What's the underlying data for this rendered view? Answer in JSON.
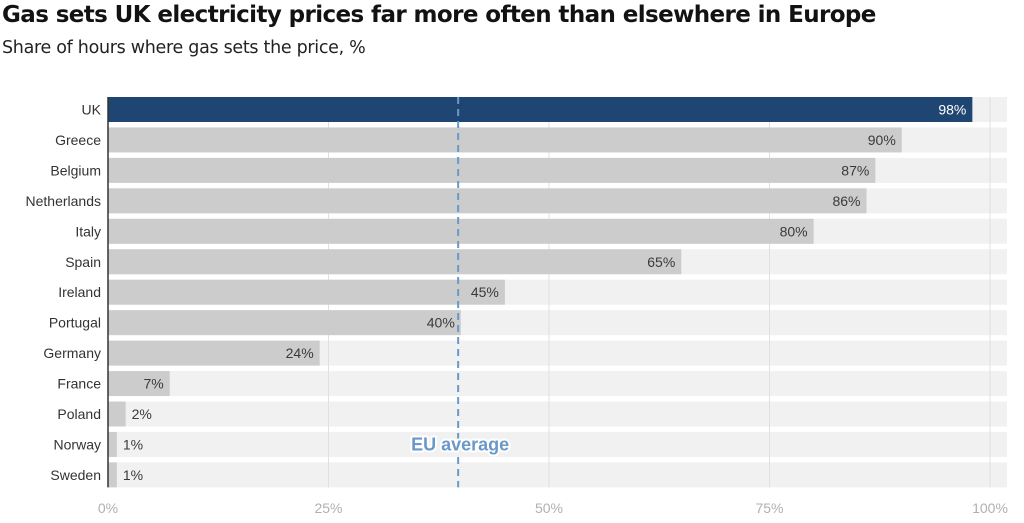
{
  "chart_data": {
    "type": "bar",
    "orientation": "horizontal",
    "title": "Gas sets UK electricity prices far more often than elsewhere in Europe",
    "subtitle": "Share of hours where gas sets the price, %",
    "xlabel": "",
    "ylabel": "",
    "xlim": [
      0,
      100
    ],
    "grid": true,
    "x_ticks": [
      0,
      25,
      50,
      75,
      100
    ],
    "x_tick_labels": [
      "0%",
      "25%",
      "50%",
      "75%",
      "100%"
    ],
    "categories": [
      "UK",
      "Greece",
      "Belgium",
      "Netherlands",
      "Italy",
      "Spain",
      "Ireland",
      "Portugal",
      "Germany",
      "France",
      "Poland",
      "Norway",
      "Sweden"
    ],
    "values": [
      98,
      90,
      87,
      86,
      80,
      65,
      45,
      40,
      24,
      7,
      2,
      1,
      1
    ],
    "value_labels": [
      "98%",
      "90%",
      "87%",
      "86%",
      "80%",
      "65%",
      "45%",
      "40%",
      "24%",
      "7%",
      "2%",
      "1%",
      "1%"
    ],
    "highlight": "UK",
    "reference_line": {
      "label": "EU average",
      "value": 39.7,
      "style": "dashed"
    },
    "colors": {
      "highlight_bar": "#1f4672",
      "bar": "#cccccc",
      "row_background": "#f1f1f1",
      "reference_line": "#6a98c9",
      "gridline": "#e0e0e0",
      "axis": "#333333"
    }
  }
}
